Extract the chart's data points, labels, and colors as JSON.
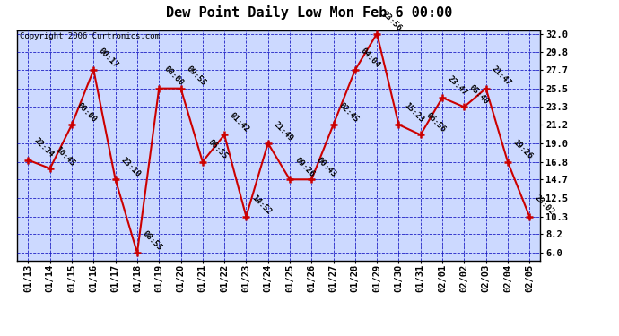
{
  "title": "Dew Point Daily Low Mon Feb 6 00:00",
  "copyright": "Copyright 2006 Curtronics.com",
  "x_labels": [
    "01/13",
    "01/14",
    "01/15",
    "01/16",
    "01/17",
    "01/18",
    "01/19",
    "01/20",
    "01/21",
    "01/22",
    "01/23",
    "01/24",
    "01/25",
    "01/26",
    "01/27",
    "01/28",
    "01/29",
    "01/30",
    "01/31",
    "02/01",
    "02/02",
    "02/03",
    "02/04",
    "02/05"
  ],
  "y_values": [
    17.0,
    16.0,
    21.2,
    27.7,
    14.7,
    6.0,
    25.5,
    25.5,
    16.8,
    20.0,
    10.3,
    19.0,
    14.7,
    14.7,
    21.2,
    27.7,
    32.0,
    21.2,
    20.0,
    24.4,
    23.3,
    25.5,
    16.8,
    10.3
  ],
  "time_labels": [
    "22:34",
    "16:45",
    "00:00",
    "00:17",
    "23:10",
    "08:55",
    "08:00",
    "09:55",
    "06:55",
    "01:42",
    "14:52",
    "21:49",
    "09:26",
    "00:43",
    "02:45",
    "04:04",
    "23:56",
    "15:23",
    "06:56",
    "23:47",
    "05:40",
    "21:47",
    "19:26",
    "23:02"
  ],
  "ylim_min": 6.0,
  "ylim_max": 32.0,
  "ytick_values": [
    6.0,
    8.2,
    10.3,
    12.5,
    14.7,
    16.8,
    19.0,
    21.2,
    23.3,
    25.5,
    27.7,
    29.8,
    32.0
  ],
  "ytick_labels": [
    "6.0",
    "8.2",
    "10.3",
    "12.5",
    "14.7",
    "16.8",
    "19.0",
    "21.2",
    "23.3",
    "25.5",
    "27.7",
    "29.8",
    "32.0"
  ],
  "line_color": "#cc0000",
  "background_color": "#ccd9ff",
  "grid_color": "#0000bb",
  "border_color": "#000000",
  "title_fontsize": 11,
  "copyright_fontsize": 6.5,
  "annotation_fontsize": 6.5,
  "tick_fontsize": 7.5
}
